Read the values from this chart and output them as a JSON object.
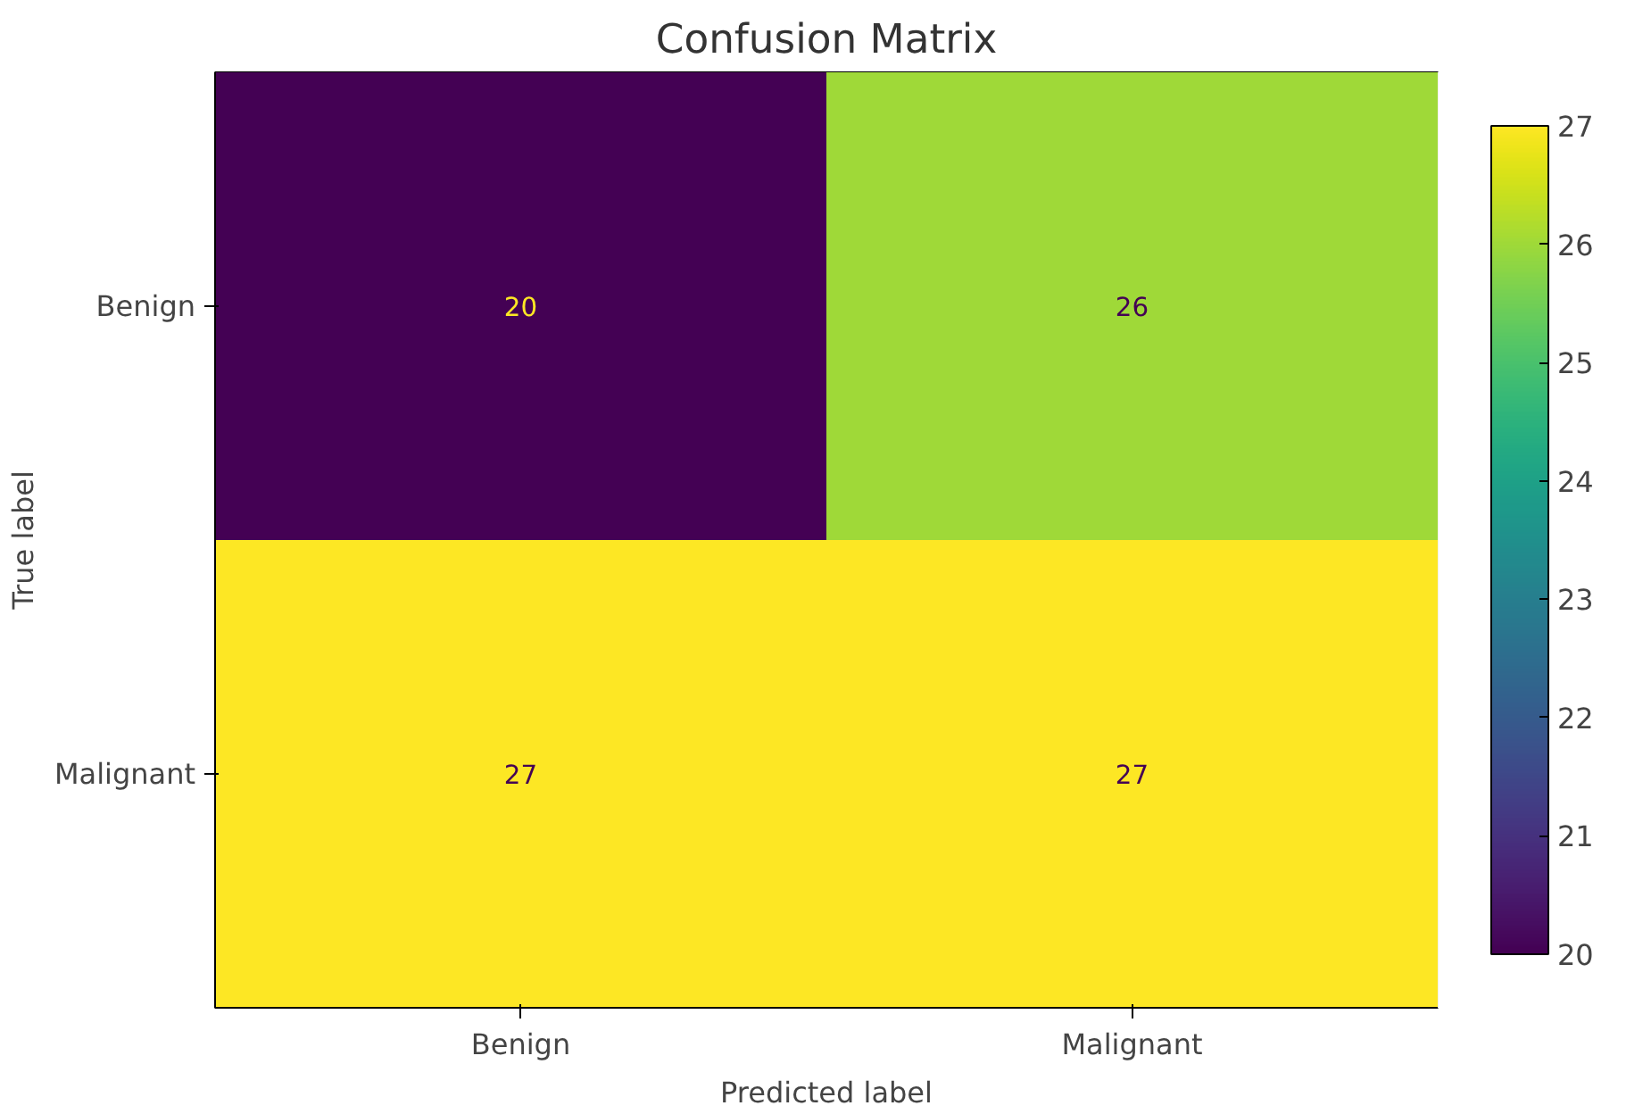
{
  "chart_data": {
    "type": "heatmap",
    "title": "Confusion Matrix",
    "xlabel": "Predicted label",
    "ylabel": "True label",
    "categories": [
      "Benign",
      "Malignant"
    ],
    "y_categories": [
      "Benign",
      "Malignant"
    ],
    "cells": [
      [
        20,
        26
      ],
      [
        27,
        27
      ]
    ],
    "clim": [
      20,
      27
    ],
    "cticks": [
      20,
      21,
      22,
      23,
      24,
      25,
      26,
      27
    ],
    "data_labels": true
  }
}
